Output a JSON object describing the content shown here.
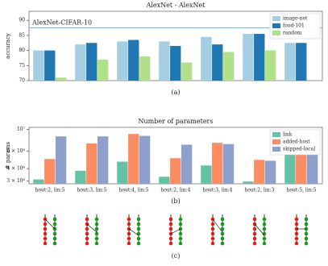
{
  "chart_data": [
    {
      "type": "bar",
      "title": "AlexNet - AlexNet",
      "y_label": "accuracy",
      "caption": "(a)",
      "categories": [
        null,
        null,
        null,
        null,
        null,
        null,
        null
      ],
      "series": [
        {
          "name": "image-net",
          "color": "#a6cee3",
          "values": [
            80,
            82,
            83,
            83,
            84.5,
            85.5,
            82.5
          ]
        },
        {
          "name": "food-101",
          "color": "#1f78b4",
          "values": [
            80,
            82.5,
            83.5,
            81.5,
            82,
            85.5,
            82.5
          ]
        },
        {
          "name": "random",
          "color": "#b2df8a",
          "values": [
            71,
            77,
            78,
            76,
            79.5,
            80,
            null
          ]
        }
      ],
      "reference": {
        "value": 87.5,
        "label": "AlexNet-CIFAR-10",
        "color": "#7fb8e0"
      },
      "ylim": [
        70,
        93
      ],
      "yticks": [
        70,
        75,
        80,
        85,
        90
      ],
      "log_scale": false,
      "legend": "upper-right"
    },
    {
      "type": "bar",
      "title": "Number of parameters",
      "y_label": "# params",
      "caption": "(b)",
      "categories": [
        "hout:2, lin:5",
        "hout:3, lin:5",
        "hout:4, lin:5",
        "hout:2, lin:4",
        "hout:3, lin:4",
        "hout:2, lin:3",
        "hout:5, lin:5"
      ],
      "series": [
        {
          "name": "link",
          "color": "#66c2a5",
          "values": [
            3100000,
            3800000,
            4700000,
            3300000,
            4300000,
            2950000,
            6600000
          ]
        },
        {
          "name": "added-host",
          "color": "#fc8d62",
          "values": [
            5000000,
            7200000,
            9000000,
            5100000,
            7300000,
            4900000,
            9800000
          ]
        },
        {
          "name": "skipped-local",
          "color": "#8da0cb",
          "values": [
            8500000,
            8500000,
            8600000,
            7000000,
            7100000,
            4800000,
            8600000
          ]
        }
      ],
      "ylim": [
        2800000,
        10500000
      ],
      "yticks": [
        {
          "value": 3000000,
          "label": "3 × 10⁶"
        },
        {
          "value": 4000000,
          "label": "4 × 10⁶"
        },
        {
          "value": 6000000,
          "label": "6 × 10⁶"
        },
        {
          "value": 10000000,
          "label": "10⁷"
        }
      ],
      "log_scale": true,
      "legend": "upper-right"
    }
  ],
  "figure_c": {
    "caption": "(c)"
  }
}
